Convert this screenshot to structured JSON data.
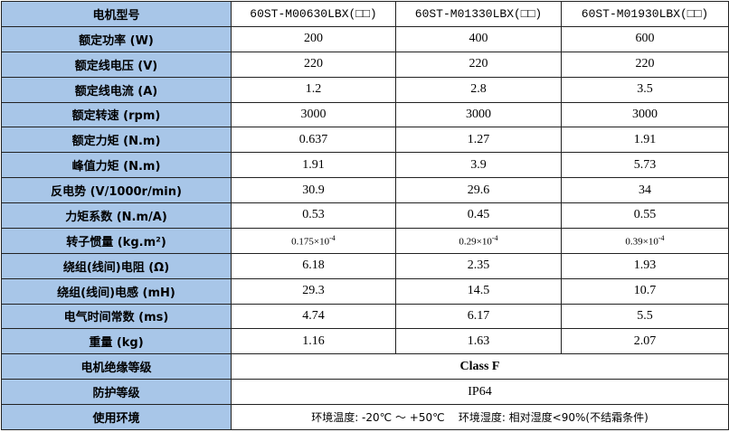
{
  "table": {
    "header": [
      "电机型号",
      "60ST-M00630LBX(□□)",
      "60ST-M01330LBX(□□)",
      "60ST-M01930LBX(□□)"
    ],
    "rows": [
      [
        "额定功率 (W)",
        "200",
        "400",
        "600"
      ],
      [
        "额定线电压 (V)",
        "220",
        "220",
        "220"
      ],
      [
        "额定线电流 (A)",
        "1.2",
        "2.8",
        "3.5"
      ],
      [
        "额定转速 (rpm)",
        "3000",
        "3000",
        "3000"
      ],
      [
        "额定力矩 (N.m)",
        "0.637",
        "1.27",
        "1.91"
      ],
      [
        "峰值力矩 (N.m)",
        "1.91",
        "3.9",
        "5.73"
      ],
      [
        "反电势 (V/1000r/min)",
        "30.9",
        "29.6",
        "34"
      ],
      [
        "力矩系数 (N.m/A)",
        "0.53",
        "0.45",
        "0.55"
      ],
      [
        "转子惯量 (kg.m²)",
        {
          "base": "0.175×10",
          "exp": "-4"
        },
        {
          "base": "0.29×10",
          "exp": "-4"
        },
        {
          "base": "0.39×10",
          "exp": "-4"
        }
      ],
      [
        "绕组(线间)电阻 (Ω)",
        "6.18",
        "2.35",
        "1.93"
      ],
      [
        "绕组(线间)电感 (mH)",
        "29.3",
        "14.5",
        "10.7"
      ],
      [
        "电气时间常数 (ms)",
        "4.74",
        "6.17",
        "5.5"
      ],
      [
        "重量 (kg)",
        "1.16",
        "1.63",
        "2.07"
      ]
    ],
    "span_rows": [
      [
        "电机绝缘等级",
        "Class F"
      ],
      [
        "防护等级",
        "IP64"
      ],
      [
        "使用环境",
        "环境温度: -20℃ ～ +50℃    环境湿度: 相对湿度<90%(不结霜条件)"
      ]
    ]
  }
}
